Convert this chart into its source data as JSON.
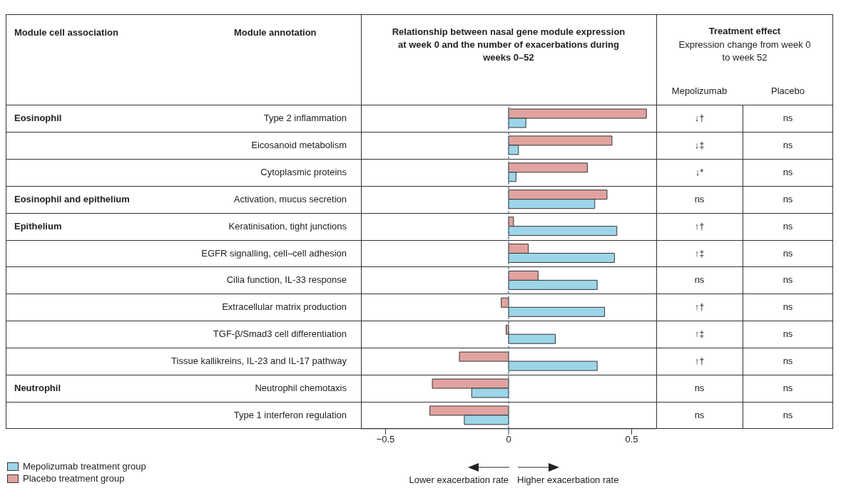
{
  "chart_data": {
    "type": "bar",
    "orientation": "horizontal",
    "title": "Relationship between nasal gene module expression at week 0 and the number of exacerbations during weeks 0–52",
    "categories": [
      "Type 2 inflammation",
      "Eicosanoid metabolism",
      "Cytoplasmic proteins",
      "Activation, mucus secretion",
      "Keratinisation, tight junctions",
      "EGFR signalling, cell–cell adhesion",
      "Cilia function, IL-33 response",
      "Extracellular matrix production",
      "TGF-β/Smad3 cell differentiation",
      "Tissue kallikreins, IL-23 and IL-17 pathway",
      "Neutrophil chemotaxis",
      "Type 1 interferon regulation"
    ],
    "y2_categories": [
      "Eosinophil",
      null,
      null,
      "Eosinophil and epithelium",
      "Epithelium",
      null,
      null,
      null,
      null,
      null,
      "Neutrophil",
      null
    ],
    "series": [
      {
        "name": "Mepolizumab treatment group",
        "color": "#9dd5e8",
        "values": [
          0.07,
          0.04,
          0.03,
          0.35,
          0.44,
          0.43,
          0.36,
          0.39,
          0.19,
          0.36,
          -0.15,
          -0.18
        ]
      },
      {
        "name": "Placebo treatment group",
        "color": "#e2a3a0",
        "values": [
          0.56,
          0.42,
          0.32,
          0.4,
          0.02,
          0.08,
          0.12,
          -0.03,
          -0.01,
          -0.2,
          -0.31,
          -0.32
        ]
      }
    ],
    "xlim": [
      -0.6,
      0.6
    ],
    "xticks": [
      -0.5,
      0,
      0.5
    ],
    "ref_lines": [
      {
        "axis": "x",
        "value": 0,
        "color": "#5a7f99",
        "line_style": "dashed"
      }
    ],
    "legend": "bottom left",
    "annotations": [
      "Module cell association",
      "Module annotation",
      "Treatment effect",
      "Expression change from week 0 to week 52",
      "Mepolizumab",
      "Placebo",
      "Lower exacerbation rate",
      "Higher exacerbation rate",
      "↓†",
      "ns",
      "↓‡",
      "ns",
      "↓*",
      "ns",
      "ns",
      "ns",
      "↑†",
      "ns",
      "↑‡",
      "ns",
      "ns",
      "ns",
      "↑†",
      "ns",
      "↑‡",
      "ns",
      "↑†",
      "ns",
      "ns",
      "ns",
      "ns",
      "ns"
    ]
  }
}
